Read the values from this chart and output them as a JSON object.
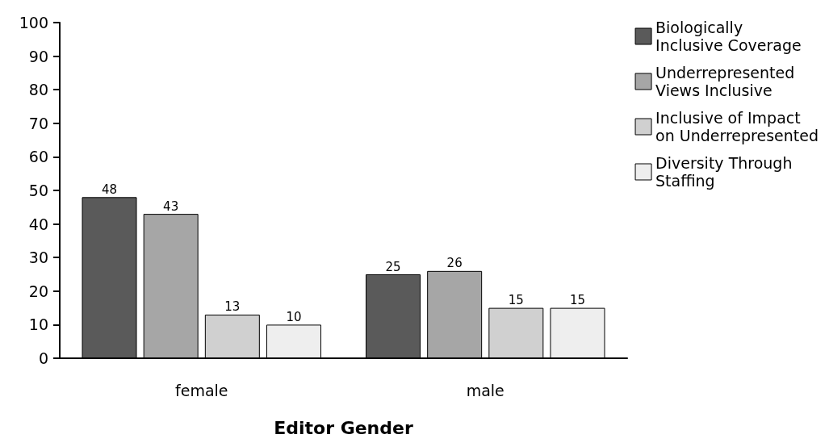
{
  "chart_data": {
    "type": "bar",
    "xlabel": "Editor Gender",
    "categories": [
      "female",
      "male"
    ],
    "series": [
      {
        "name": "Biologically\nInclusive Coverage",
        "color": "#5a5a5a",
        "values": [
          48,
          25
        ]
      },
      {
        "name": "Underrepresented\nViews Inclusive",
        "color": "#a6a6a6",
        "values": [
          43,
          26
        ]
      },
      {
        "name": "Inclusive of Impact\non Underrepresented",
        "color": "#d0d0d0",
        "values": [
          13,
          15
        ]
      },
      {
        "name": "Diversity Through\nStaffing",
        "color": "#eeeeee",
        "values": [
          10,
          15
        ]
      }
    ],
    "ylim": [
      0,
      100
    ],
    "yticks": [
      0,
      10,
      20,
      30,
      40,
      50,
      60,
      70,
      80,
      90,
      100
    ],
    "grid": false,
    "legend": "top right",
    "data_labels": true
  }
}
